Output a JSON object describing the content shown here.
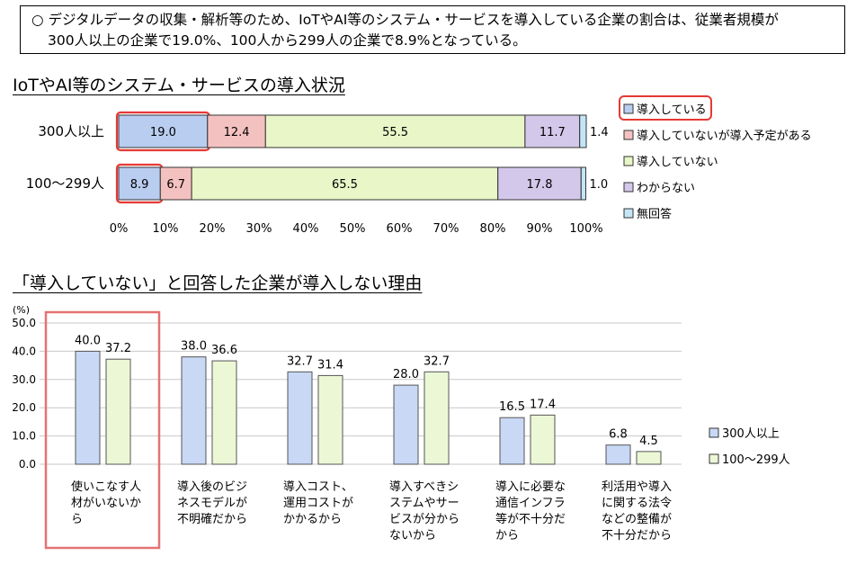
{
  "summary": {
    "line1": "○ デジタルデータの収集・解析等のため、IoTやAI等のシステム・サービスを導入している企業の割合は、従業者規模が",
    "line2": "300人以上の企業で19.0%、100人から299人の企業で8.9%となっている。"
  },
  "chart_data": [
    {
      "type": "bar",
      "orientation": "horizontal",
      "stacked": true,
      "title": "IoTやAI等のシステム・サービスの導入状況",
      "categories": [
        "300人以上",
        "100～299人"
      ],
      "series": [
        {
          "name": "導入している",
          "color": "#b9cdf0",
          "values": [
            19.0,
            8.9
          ]
        },
        {
          "name": "導入していないが導入予定がある",
          "color": "#f4c1c1",
          "values": [
            12.4,
            6.7
          ]
        },
        {
          "name": "導入していない",
          "color": "#e8f6c8",
          "values": [
            55.5,
            65.5
          ]
        },
        {
          "name": "わからない",
          "color": "#d4c8ea",
          "values": [
            11.7,
            17.8
          ]
        },
        {
          "name": "無回答",
          "color": "#c3e6f5",
          "values": [
            1.4,
            1.0
          ]
        }
      ],
      "value_labels": [
        [
          "19.0",
          "12.4",
          "55.5",
          "11.7",
          "1.4"
        ],
        [
          "8.9",
          "6.7",
          "65.5",
          "17.8",
          "1.0"
        ]
      ],
      "xaxis_ticks": [
        "0%",
        "10%",
        "20%",
        "30%",
        "40%",
        "50%",
        "60%",
        "70%",
        "80%",
        "90%",
        "100%"
      ],
      "xlim": [
        0,
        100
      ],
      "legend": "right",
      "highlight": "導入している"
    },
    {
      "type": "bar",
      "orientation": "vertical",
      "title": "「導入していない」と回答した企業が導入しない理由",
      "unit": "(%)",
      "categories": [
        "使いこなす人材がいないから",
        "導入後のビジネスモデルが不明確だから",
        "導入コスト、運用コストがかかるから",
        "導入すべきシステムやサービスが分からないから",
        "導入に必要な通信インフラ等が不十分だから",
        "利活用や導入に関する法令などの整備が不十分だから"
      ],
      "category_lines": [
        [
          "使いこなす人",
          "材がいないか",
          "ら"
        ],
        [
          "導入後のビジ",
          "ネスモデルが",
          "不明確だから"
        ],
        [
          "導入コスト、",
          "運用コストが",
          "かかるから"
        ],
        [
          "導入すべきシ",
          "ステムやサー",
          "ビスが分から",
          "ないから"
        ],
        [
          "導入に必要な",
          "通信インフラ",
          "等が不十分だ",
          "から"
        ],
        [
          "利活用や導入",
          "に関する法令",
          "などの整備が",
          "不十分だから"
        ]
      ],
      "series": [
        {
          "name": "300人以上",
          "color": "#c8d8f5",
          "values": [
            40.0,
            38.0,
            32.7,
            28.0,
            16.5,
            6.8
          ]
        },
        {
          "name": "100～299人",
          "color": "#ecf7d6",
          "values": [
            37.2,
            36.6,
            31.4,
            32.7,
            17.4,
            4.5
          ]
        }
      ],
      "value_labels": [
        [
          "40.0",
          "38.0",
          "32.7",
          "28.0",
          "16.5",
          "6.8"
        ],
        [
          "37.2",
          "36.6",
          "31.4",
          "32.7",
          "17.4",
          "4.5"
        ]
      ],
      "yaxis_ticks": [
        "0.0",
        "10.0",
        "20.0",
        "30.0",
        "40.0",
        "50.0"
      ],
      "ylim": [
        0,
        50
      ],
      "legend": "right",
      "highlight_category": 0
    }
  ]
}
